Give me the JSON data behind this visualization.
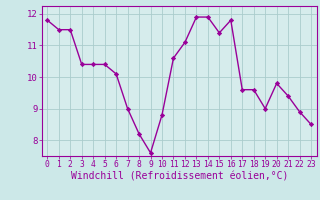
{
  "x": [
    0,
    1,
    2,
    3,
    4,
    5,
    6,
    7,
    8,
    9,
    10,
    11,
    12,
    13,
    14,
    15,
    16,
    17,
    18,
    19,
    20,
    21,
    22,
    23
  ],
  "y": [
    11.8,
    11.5,
    11.5,
    10.4,
    10.4,
    10.4,
    10.1,
    9.0,
    8.2,
    7.6,
    8.8,
    10.6,
    11.1,
    11.9,
    11.9,
    11.4,
    11.8,
    9.6,
    9.6,
    9.0,
    9.8,
    9.4,
    8.9,
    8.5
  ],
  "line_color": "#990099",
  "marker": "D",
  "markersize": 2.2,
  "linewidth": 1.0,
  "bg_color": "#cce8e8",
  "grid_color": "#aacccc",
  "xlabel": "Windchill (Refroidissement éolien,°C)",
  "ylabel": "",
  "ylim": [
    7.5,
    12.25
  ],
  "xlim": [
    -0.5,
    23.5
  ],
  "yticks": [
    8,
    9,
    10,
    11,
    12
  ],
  "xticks": [
    0,
    1,
    2,
    3,
    4,
    5,
    6,
    7,
    8,
    9,
    10,
    11,
    12,
    13,
    14,
    15,
    16,
    17,
    18,
    19,
    20,
    21,
    22,
    23
  ],
  "xlabel_fontsize": 7.0,
  "tick_fontsize": 6.5,
  "xtick_fontsize": 5.8,
  "tick_color": "#990099",
  "label_color": "#990099",
  "spine_color": "#990099",
  "axis_bg": "#d6ecec"
}
